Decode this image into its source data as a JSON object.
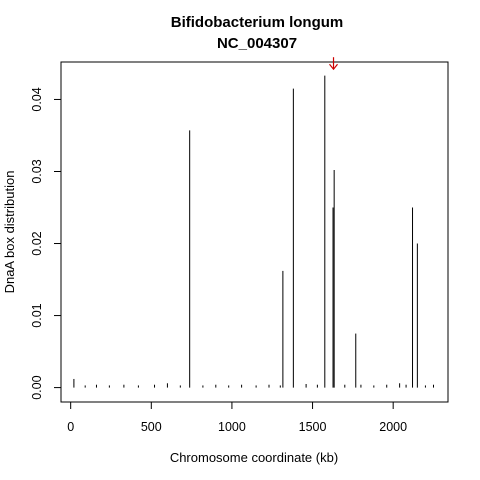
{
  "chart_data": {
    "type": "bar",
    "title": "Bifidobacterium longum",
    "subtitle": "NC_004307",
    "xlabel": "Chromosome coordinate (kb)",
    "ylabel": "DnaA box distribution",
    "xlim": [
      -60,
      2340
    ],
    "ylim": [
      -0.002,
      0.0452
    ],
    "xticks": [
      0,
      500,
      1000,
      1500,
      2000
    ],
    "yticks": [
      0.0,
      0.01,
      0.02,
      0.03,
      0.04
    ],
    "ytick_labels": [
      "0.00",
      "0.01",
      "0.02",
      "0.03",
      "0.04"
    ],
    "grid": false,
    "series_color": "#000000",
    "annotation": {
      "type": "arrow",
      "x": 1630,
      "y": 0.0442,
      "color": "#cc0000"
    },
    "points": [
      {
        "x": 20,
        "y": 0.0012
      },
      {
        "x": 90,
        "y": 0.0003
      },
      {
        "x": 160,
        "y": 0.0004
      },
      {
        "x": 240,
        "y": 0.0003
      },
      {
        "x": 330,
        "y": 0.0004
      },
      {
        "x": 420,
        "y": 0.0003
      },
      {
        "x": 520,
        "y": 0.0004
      },
      {
        "x": 600,
        "y": 0.0006
      },
      {
        "x": 680,
        "y": 0.0003
      },
      {
        "x": 738,
        "y": 0.0357
      },
      {
        "x": 820,
        "y": 0.0003
      },
      {
        "x": 900,
        "y": 0.0004
      },
      {
        "x": 980,
        "y": 0.0003
      },
      {
        "x": 1060,
        "y": 0.0004
      },
      {
        "x": 1150,
        "y": 0.0003
      },
      {
        "x": 1230,
        "y": 0.0004
      },
      {
        "x": 1300,
        "y": 0.0003
      },
      {
        "x": 1316,
        "y": 0.0162
      },
      {
        "x": 1381,
        "y": 0.0415
      },
      {
        "x": 1460,
        "y": 0.0005
      },
      {
        "x": 1530,
        "y": 0.0004
      },
      {
        "x": 1576,
        "y": 0.0433
      },
      {
        "x": 1627,
        "y": 0.025
      },
      {
        "x": 1634,
        "y": 0.0302
      },
      {
        "x": 1700,
        "y": 0.0004
      },
      {
        "x": 1768,
        "y": 0.0075
      },
      {
        "x": 1800,
        "y": 0.0004
      },
      {
        "x": 1880,
        "y": 0.0003
      },
      {
        "x": 1960,
        "y": 0.0004
      },
      {
        "x": 2040,
        "y": 0.0006
      },
      {
        "x": 2080,
        "y": 0.0004
      },
      {
        "x": 2120,
        "y": 0.025
      },
      {
        "x": 2150,
        "y": 0.02
      },
      {
        "x": 2200,
        "y": 0.0003
      },
      {
        "x": 2250,
        "y": 0.0004
      }
    ]
  }
}
